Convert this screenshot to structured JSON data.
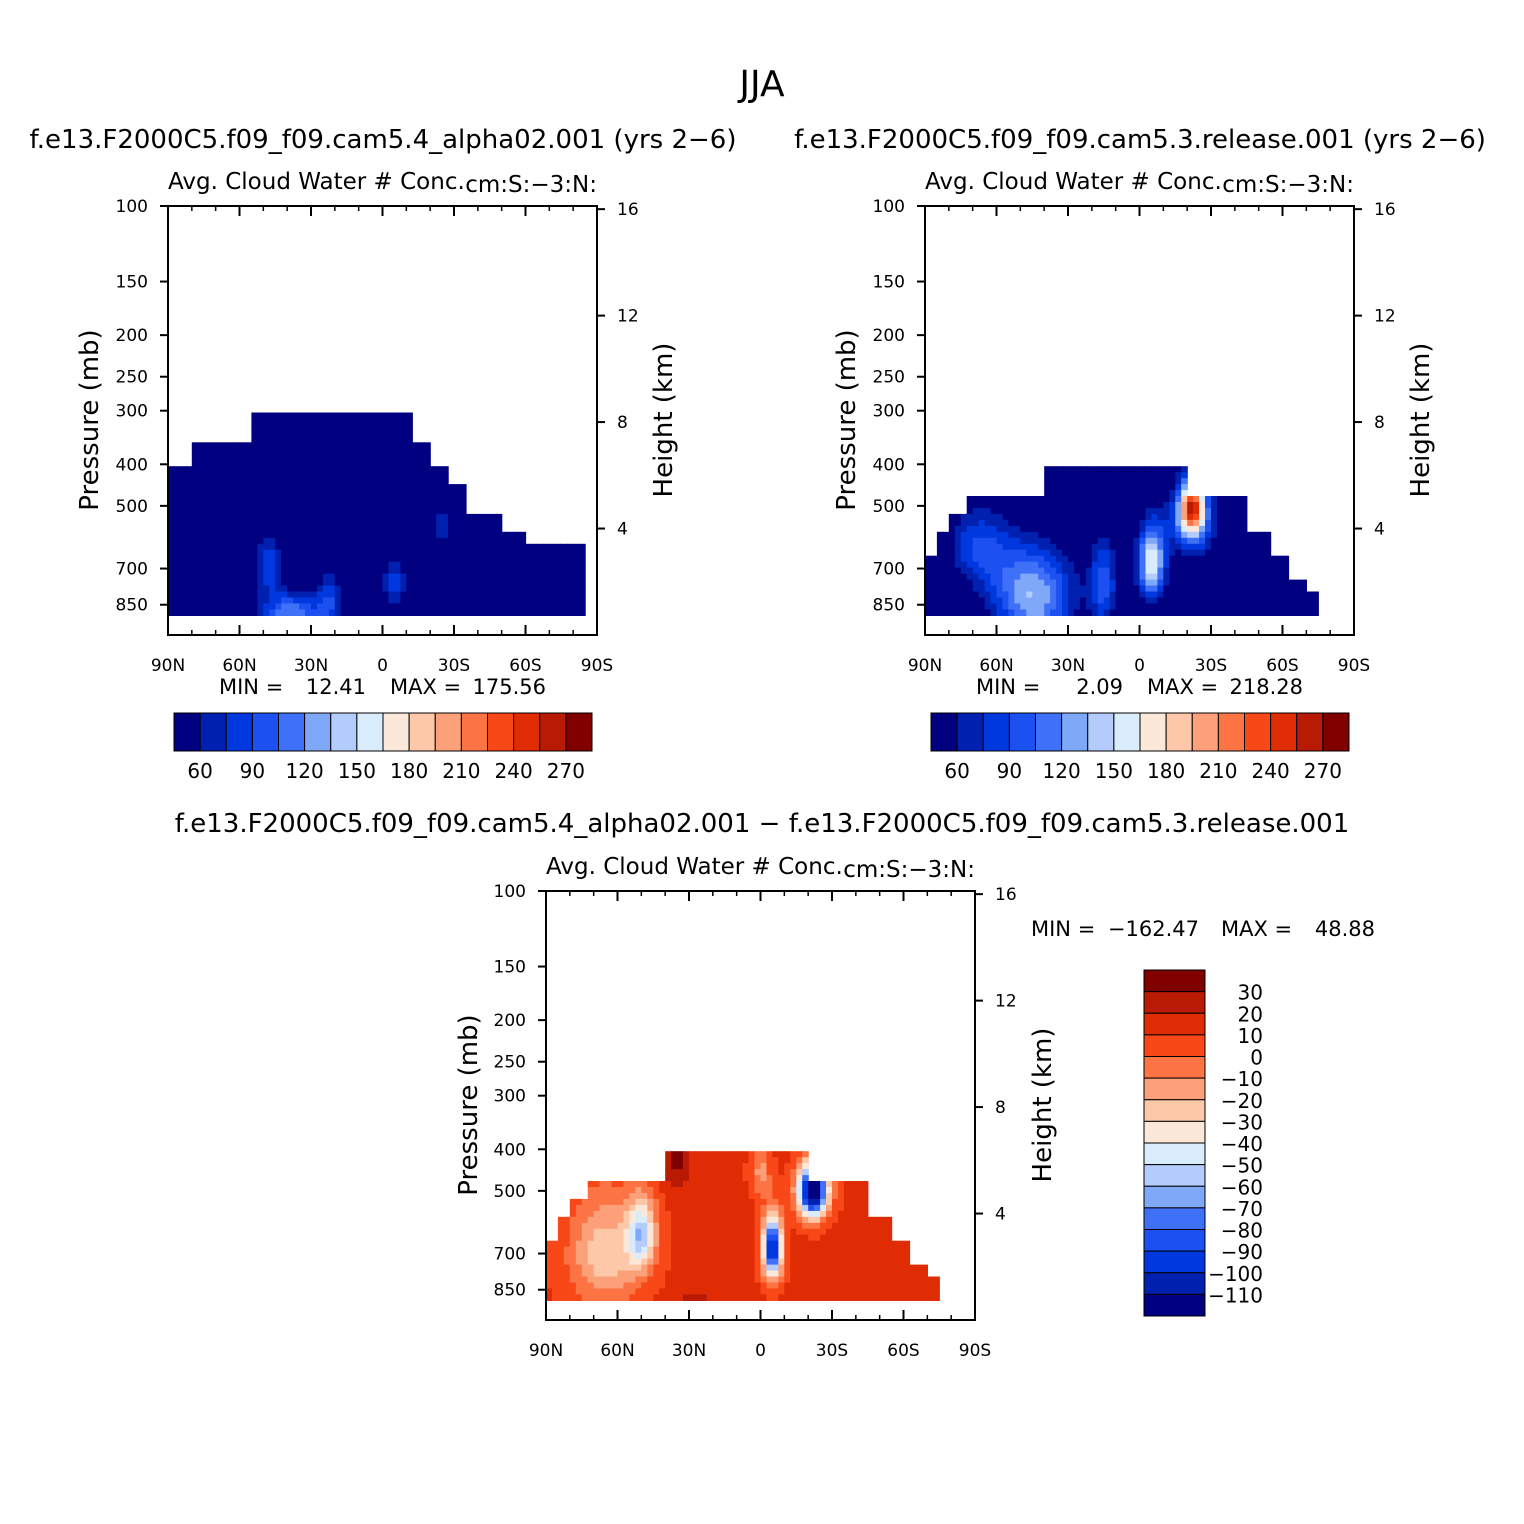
{
  "figure_title": "JJA",
  "chart_data": [
    {
      "type": "contour",
      "case_title": "f.e13.F2000C5.f09_f09.cam5.4_alpha02.001 (yrs 2−6)",
      "title_left": "Avg. Cloud Water # Conc.",
      "title_right": "cm:S:−3:N:",
      "xlabel": "",
      "ylabel": "Pressure (mb)",
      "ylabel_right": "Height (km)",
      "x_range": [
        "90N",
        "90S"
      ],
      "x_ticks": [
        "90N",
        "60N",
        "30N",
        "0",
        "30S",
        "60S",
        "90S"
      ],
      "y_ticks": [
        100,
        150,
        200,
        250,
        300,
        400,
        500,
        700,
        850
      ],
      "y_ticks_right": [
        4,
        8,
        12,
        16
      ],
      "ylim": [
        100,
        1000
      ],
      "min_label": "MIN =",
      "min_value": "12.41",
      "max_label": "MAX =",
      "max_value": "175.56",
      "colorbar_levels": [
        45,
        60,
        75,
        90,
        105,
        120,
        135,
        150,
        165,
        180,
        195,
        210,
        225,
        240,
        255,
        270
      ],
      "colorbar_labels": [
        "60",
        "90",
        "120",
        "150",
        "180",
        "210",
        "240",
        "270"
      ],
      "colors": [
        "#000080",
        "#0020b0",
        "#0038e0",
        "#1c50f0",
        "#3f70f8",
        "#80a8f8",
        "#b4ccfc",
        "#d8ecfc",
        "#fce8d8",
        "#fcc8a8",
        "#fca07a",
        "#fc7444",
        "#f84818",
        "#e02c04",
        "#b81a04",
        "#800000"
      ]
    },
    {
      "type": "contour",
      "case_title": "f.e13.F2000C5.f09_f09.cam5.3.release.001 (yrs 2−6)",
      "title_left": "Avg. Cloud Water # Conc.",
      "title_right": "cm:S:−3:N:",
      "xlabel": "",
      "ylabel": "Pressure (mb)",
      "ylabel_right": "Height (km)",
      "x_range": [
        "90N",
        "90S"
      ],
      "x_ticks": [
        "90N",
        "60N",
        "30N",
        "0",
        "30S",
        "60S",
        "90S"
      ],
      "y_ticks": [
        100,
        150,
        200,
        250,
        300,
        400,
        500,
        700,
        850
      ],
      "y_ticks_right": [
        4,
        8,
        12,
        16
      ],
      "ylim": [
        100,
        1000
      ],
      "min_label": "MIN =",
      "min_value": "2.09",
      "max_label": "MAX =",
      "max_value": "218.28",
      "colorbar_levels": [
        45,
        60,
        75,
        90,
        105,
        120,
        135,
        150,
        165,
        180,
        195,
        210,
        225,
        240,
        255,
        270
      ],
      "colorbar_labels": [
        "60",
        "90",
        "120",
        "150",
        "180",
        "210",
        "240",
        "270"
      ],
      "colors": [
        "#000080",
        "#0020b0",
        "#0038e0",
        "#1c50f0",
        "#3f70f8",
        "#80a8f8",
        "#b4ccfc",
        "#d8ecfc",
        "#fce8d8",
        "#fcc8a8",
        "#fca07a",
        "#fc7444",
        "#f84818",
        "#e02c04",
        "#b81a04",
        "#800000"
      ]
    },
    {
      "type": "contour",
      "case_title": "f.e13.F2000C5.f09_f09.cam5.4_alpha02.001 − f.e13.F2000C5.f09_f09.cam5.3.release.001",
      "title_left": "Avg. Cloud Water # Conc.",
      "title_right": "cm:S:−3:N:",
      "xlabel": "",
      "ylabel": "Pressure (mb)",
      "ylabel_right": "Height (km)",
      "x_range": [
        "90N",
        "90S"
      ],
      "x_ticks": [
        "90N",
        "60N",
        "30N",
        "0",
        "30S",
        "60S",
        "90S"
      ],
      "y_ticks": [
        100,
        150,
        200,
        250,
        300,
        400,
        500,
        700,
        850
      ],
      "y_ticks_right": [
        4,
        8,
        12,
        16
      ],
      "ylim": [
        100,
        1000
      ],
      "min_label": "MIN =",
      "min_value": "−162.47",
      "max_label": "MAX =",
      "max_value": "48.88",
      "colorbar_levels": [
        -120,
        -110,
        -100,
        -90,
        -80,
        -70,
        -60,
        -50,
        -40,
        -30,
        -20,
        -10,
        0,
        10,
        20,
        30,
        40
      ],
      "colorbar_labels": [
        "30",
        "20",
        "10",
        "0",
        "−10",
        "−20",
        "−30",
        "−40",
        "−50",
        "−60",
        "−70",
        "−80",
        "−90",
        "−100",
        "−110"
      ],
      "colors": [
        "#000080",
        "#0020b0",
        "#0038e0",
        "#1c50f0",
        "#3f70f8",
        "#80a8f8",
        "#b4ccfc",
        "#d8ecfc",
        "#fce8d8",
        "#fcc8a8",
        "#fca07a",
        "#fc7444",
        "#f84818",
        "#e02c04",
        "#b81a04",
        "#800000"
      ]
    }
  ]
}
